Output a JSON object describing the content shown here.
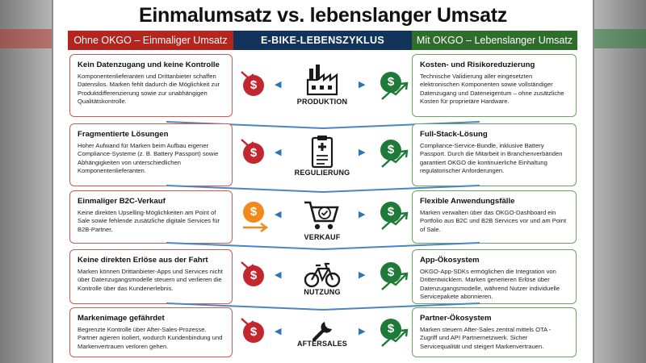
{
  "title": "Einmalumsatz vs. lebenslanger Umsatz",
  "headers": {
    "left": "Ohne OKGO – Einmaliger Umsatz",
    "middle": "E-BIKE-LEBENSZYKLUS",
    "right": "Mit OKGO – Lebenslanger Umsatz"
  },
  "rows": [
    {
      "stage": "PRODUKTION",
      "icon": "factory-icon",
      "left_title": "Kein Datenzugang und keine Kontrolle",
      "left_text": "Komponentenlieferanten und Drittanbieter schaffen Datensilos. Marken fehlt dadurch die Möglichkeit zur Produktdifferenzierung sowie zur unabhängigen Qualitätskontrolle.",
      "right_title": "Kosten- und Risikoreduzierung",
      "right_text": "Technische Validierung aller eingesetzten elektronischen Komponenten sowie vollständiger Datenzugang und Dateneigentum – ohne zusätzliche Kosten für proprietäre Hardware."
    },
    {
      "stage": "REGULIERUNG",
      "icon": "clipboard-icon",
      "left_title": "Fragmentierte Lösungen",
      "left_text": "Hoher Aufwand für Marken beim Aufbau eigener Compliance-Systeme (z. B. Battery Passport) sowie Abhängigkeiten von unterschiedlichen Komponentenlieferanten.",
      "right_title": "Full-Stack-Lösung",
      "right_text": "Compliance-Service-Bundle, inklusive Battery Passport. Durch die Mitarbeit in Branchenverbänden garantiert OKGO die kontinuierliche Einhaltung regulatorischer Anforderungen."
    },
    {
      "stage": "VERKAUF",
      "icon": "cart-icon",
      "left_title": "Einmaliger B2C-Verkauf",
      "left_text": "Keine direkten Upselling-Möglichkeiten am Point of Sale sowie fehlende zusätzliche digitale Services für B2B-Partner.",
      "right_title": "Flexible Anwendungsfälle",
      "right_text": "Marken verwalten über das OKGO-Dashboard ein Portfolio aus B2C und B2B Services vor und am Point of Sale."
    },
    {
      "stage": "NUTZUNG",
      "icon": "bicycle-icon",
      "left_title": "Keine direkten Erlöse aus der Fahrt",
      "left_text": "Marken können Drittanbieter-Apps und Services nicht über Datenzugangsmodelle steuern und verlieren die Kontrolle über das Kundenerlebnis.",
      "right_title": "App-Ökosystem",
      "right_text": "OKGO-App-SDKs ermöglichen die Integration von Drittentwicklern. Marken generieren Erlöse über Datenzugangsmodelle, während Nutzer individuelle Servicepakete abonnieren."
    },
    {
      "stage": "AFTERSALES",
      "icon": "wrench-icon",
      "left_title": "Markenimage gefährdet",
      "left_text": "Begrenzte Kontrolle über After-Sales-Prozesse. Partner agieren isoliert, wodurch Kundenbindung und Markenvertrauen verloren gehen.",
      "right_title": "Partner-Ökosystem",
      "right_text": "Marken steuern After-Sales zentral mittels OTA - Zugriff und API Partnernetzwerk. Sicher Servicequalität und steigert Markenvertrauen."
    }
  ],
  "coin_symbol": "$",
  "colors": {
    "red": "#b3251f",
    "navy": "#12335a",
    "green": "#2f6d2c",
    "orange": "#f08a1c",
    "blue_arrow": "#2a74b8"
  }
}
